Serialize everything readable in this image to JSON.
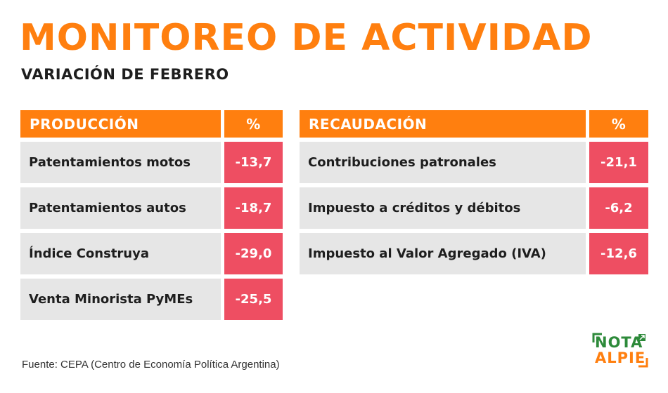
{
  "header": {
    "title": "MONITOREO DE ACTIVIDAD",
    "subtitle": "VARIACIÓN DE FEBRERO"
  },
  "produccion": {
    "header_label": "PRODUCCIÓN",
    "header_pct": "%",
    "rows": [
      {
        "label": "Patentamientos motos",
        "value": "-13,7"
      },
      {
        "label": "Patentamientos autos",
        "value": "-18,7"
      },
      {
        "label": "Índice Construya",
        "value": "-29,0"
      },
      {
        "label": "Venta Minorista PyMEs",
        "value": "-25,5"
      }
    ]
  },
  "recaudacion": {
    "header_label": "RECAUDACIÓN",
    "header_pct": "%",
    "rows": [
      {
        "label": "Contribuciones patronales",
        "value": "-21,1"
      },
      {
        "label": "Impuesto a créditos y débitos",
        "value": "-6,2"
      },
      {
        "label": "Impuesto al Valor Agregado (IVA)",
        "value": "-12,6"
      }
    ]
  },
  "footer": {
    "source": "Fuente: CEPA (Centro de Economía Política Argentina)"
  },
  "logo": {
    "line1": "NOTA",
    "line2": "ALPIE",
    "icon": "nota-al-pie-logo-icon"
  },
  "colors": {
    "accent": "#ff7f0f",
    "negative": "#ee4e62",
    "row_bg": "#e6e6e6",
    "logo_green": "#2d8a3a"
  }
}
